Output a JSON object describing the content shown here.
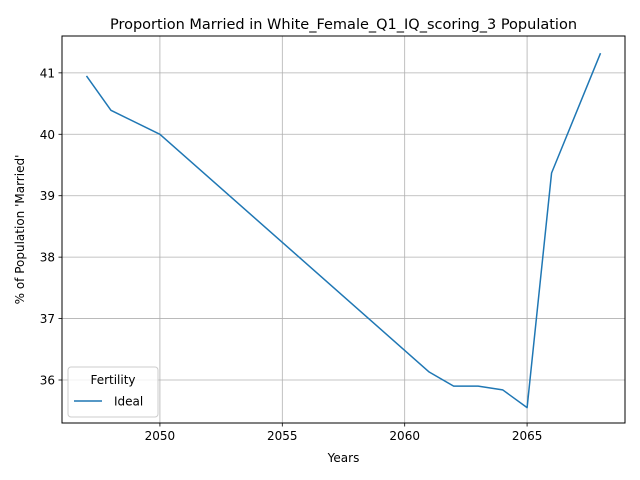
{
  "chart_data": {
    "type": "line",
    "title": "Proportion Married in White_Female_Q1_IQ_scoring_3 Population",
    "xlabel": "Years",
    "ylabel": "% of Population 'Married'",
    "xlim": [
      2046.0,
      2069.0
    ],
    "ylim": [
      35.3,
      41.6
    ],
    "xticks": [
      2050,
      2055,
      2060,
      2065
    ],
    "yticks": [
      36,
      37,
      38,
      39,
      40,
      41
    ],
    "grid": true,
    "legend": {
      "title": "Fertility",
      "placement": "lower-left"
    },
    "series": [
      {
        "name": "Ideal",
        "color": "#1f77b4",
        "x": [
          2047,
          2048,
          2050,
          2061,
          2062,
          2063,
          2064,
          2065,
          2066,
          2068
        ],
        "y": [
          40.95,
          40.39,
          40.0,
          36.13,
          35.9,
          35.9,
          35.84,
          35.55,
          39.37,
          41.32
        ]
      }
    ]
  }
}
